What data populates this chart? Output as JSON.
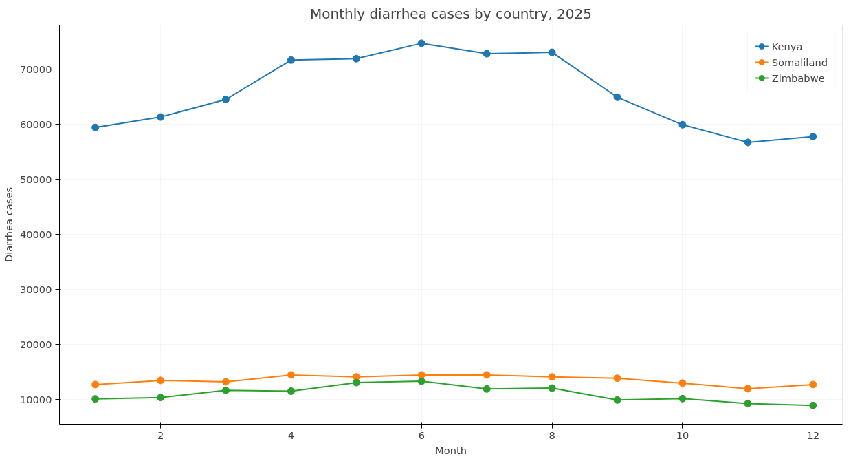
{
  "chart_data": {
    "type": "line",
    "title": "Monthly diarrhea cases by country, 2025",
    "xlabel": "Month",
    "ylabel": "Diarrhea cases",
    "x": [
      1,
      2,
      3,
      4,
      5,
      6,
      7,
      8,
      9,
      10,
      11,
      12
    ],
    "series": [
      {
        "name": "Kenya",
        "color": "#1f77b4",
        "values": [
          59400,
          61300,
          64500,
          71650,
          71900,
          74700,
          72800,
          73050,
          64900,
          59900,
          56700,
          57750
        ]
      },
      {
        "name": "Somaliland",
        "color": "#ff7f0e",
        "values": [
          12700,
          13450,
          13200,
          14450,
          14100,
          14450,
          14450,
          14100,
          13850,
          12950,
          11950,
          12700
        ]
      },
      {
        "name": "Zimbabwe",
        "color": "#2ca02c",
        "values": [
          10100,
          10350,
          11650,
          11500,
          13050,
          13300,
          11900,
          12050,
          9900,
          10150,
          9250,
          8900
        ]
      }
    ],
    "xlim": [
      0.45,
      12.45
    ],
    "xticks": [
      2,
      4,
      6,
      8,
      10,
      12
    ],
    "ylim": [
      5500,
      78000
    ],
    "yticks": [
      10000,
      20000,
      30000,
      40000,
      50000,
      60000,
      70000
    ],
    "grid": true,
    "legend": "top right",
    "marker": "circle",
    "line_style": "solid"
  }
}
